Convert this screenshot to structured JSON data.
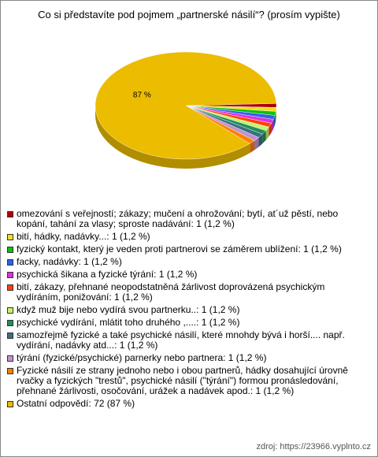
{
  "chart_data": {
    "type": "pie",
    "title": "Co si představíte pod pojmem „partnerské násilí“? (prosím vypište)",
    "categories": [
      "omezování s veřejností; zákazy; mučení a ohrožování; bytí, at´už pěstí, nebo kopání, tahání za vlasy; sproste nadávání: 1 (1,2 %)",
      "bití, hádky, nadávky...: 1 (1,2 %)",
      "fyzický kontakt, který je veden proti partnerovi se záměrem ublížení: 1 (1,2 %)",
      "facky, nadávky: 1 (1,2 %)",
      "psychická šikana a fyzické týrání: 1 (1,2 %)",
      "bití, zákazy, přehnané neopodstatněná žárlivost doprovázená psychickým vydíráním, ponižování: 1 (1,2 %)",
      "když muž bije nebo vydírá svou partnerku..: 1 (1,2 %)",
      "psychické vydírání, mlátit toho druhého ,....: 1 (1,2 %)",
      "samozřejmě fyzické a také psychické násilí, které mnohdy bývá i horší.... např. vydírání, nadávky atd...: 1 (1,2 %)",
      "týrání (fyzické/psychické) parnerky nebo partnera: 1 (1,2 %)",
      "Fyzické násilí ze strany jednoho nebo i obou partnerů, hádky dosahující úrovně rvačky a fyzických \"trestů\", psychické násilí (\"týrání\") formou pronásledování, přehnané žárlivosti, osočování, urážek a nadávek apod.: 1 (1,2 %)",
      "Ostatní odpovědí: 72 (87 %)"
    ],
    "values": [
      1.2,
      1.2,
      1.2,
      1.2,
      1.2,
      1.2,
      1.2,
      1.2,
      1.2,
      1.2,
      1.2,
      87
    ],
    "value_labels": [
      null,
      null,
      null,
      null,
      null,
      null,
      null,
      null,
      null,
      null,
      null,
      "87 %"
    ],
    "colors": [
      "#b00000",
      "#f0e020",
      "#10c010",
      "#3060f0",
      "#e030e0",
      "#ff4000",
      "#c8f070",
      "#20905a",
      "#3a7080",
      "#c090d0",
      "#ff8000",
      "#ecbc00"
    ],
    "source": "zdroj: https://23966.vyplnto.cz"
  }
}
